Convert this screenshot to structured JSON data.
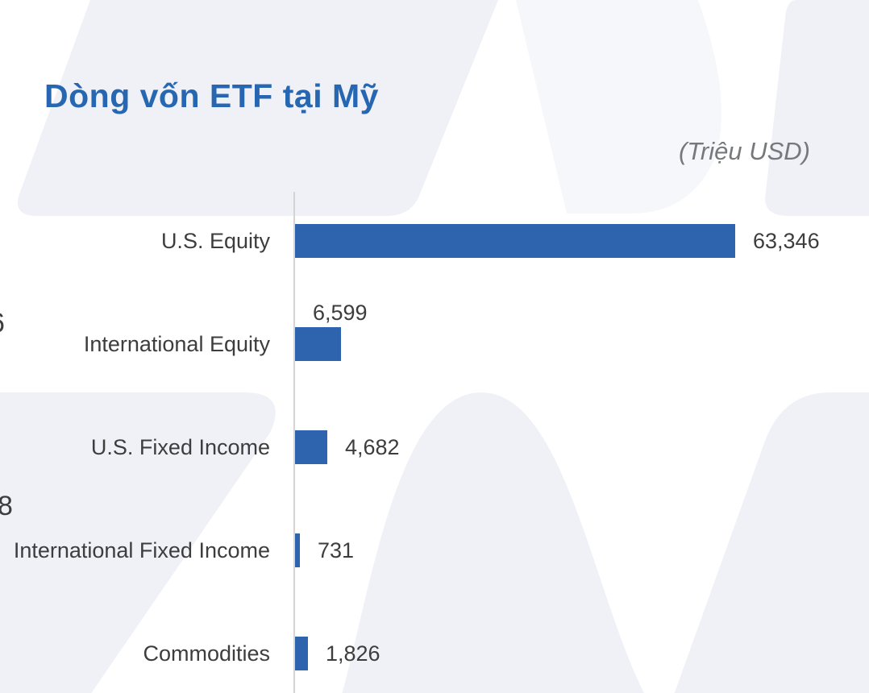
{
  "title": "Dòng vốn ETF tại Mỹ",
  "unit_label": "(Triệu USD)",
  "colors": {
    "bar": "#2E64AE",
    "title": "#2767B2",
    "unit_text": "#76787B",
    "label_text": "#3D3D3D",
    "axis_line": "#D4D4D4",
    "watermark": "#EFF1F7"
  },
  "edge_fragments": {
    "items": [
      "6",
      "8"
    ]
  },
  "chart_data": {
    "type": "bar",
    "orientation": "horizontal",
    "title": "Dòng vốn ETF tại Mỹ",
    "unit": "Triệu USD",
    "categories": [
      "U.S. Equity",
      "International Equity",
      "U.S. Fixed Income",
      "International Fixed Income",
      "Commodities"
    ],
    "values": [
      63346,
      6599,
      4682,
      731,
      1826
    ],
    "value_labels": [
      "63,346",
      "6,599",
      "4,682",
      "731",
      "1,826"
    ],
    "value_label_placement": [
      "right",
      "above",
      "right",
      "right",
      "right"
    ],
    "xlim": [
      0,
      63346
    ],
    "grid": false,
    "legend": false
  }
}
